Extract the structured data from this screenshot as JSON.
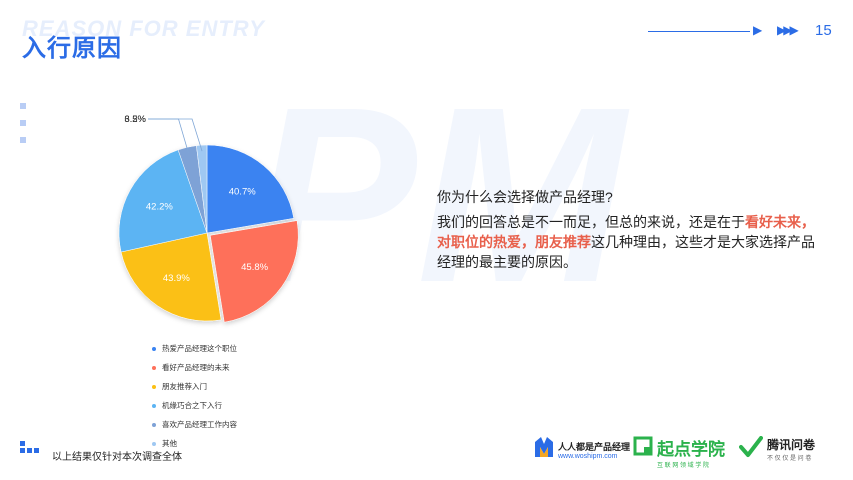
{
  "header": {
    "watermark": "REASON FOR ENTRY",
    "title": "入行原因",
    "page_number": "15",
    "accent_color": "#2b6ce6"
  },
  "chart_data": {
    "type": "pie",
    "title": "",
    "slices": [
      {
        "label": "热爱产品经理这个职位",
        "value": 40.7,
        "display": "40.7%",
        "color": "#3a83f1"
      },
      {
        "label": "看好产品经理的未来",
        "value": 45.8,
        "display": "45.8%",
        "color": "#fe705a"
      },
      {
        "label": "朋友推荐入门",
        "value": 43.9,
        "display": "43.9%",
        "color": "#fbc013"
      },
      {
        "label": "机缘巧合之下入行",
        "value": 42.2,
        "display": "42.2%",
        "color": "#5cb4f3"
      },
      {
        "label": "喜欢产品经理工作内容",
        "value": 6.2,
        "display": "6.2%",
        "color": "#7ea2d6"
      },
      {
        "label": "其他",
        "value": 3.5,
        "display": "3.5%",
        "color": "#9fc8f2"
      }
    ],
    "legend_placement": "bottom"
  },
  "text": {
    "question": "你为什么会选择做产品经理?",
    "answer_part1": "我们的回答总是不一而足，但总的来说，还是在于",
    "answer_highlight": "看好未来，对职位的热爱，朋友推荐",
    "answer_part2": "这几种理由，这些才是大家选择产品经理的最主要的原因。",
    "highlight_color": "#e8604c"
  },
  "footer": {
    "note": "以上结果仅针对本次调查全体",
    "logo1_main": "人人都是产品经理",
    "logo1_sub": "www.woshipm.com",
    "logo2_main": "起点学院",
    "logo2_sub": "互 联 网 领 域 学 院",
    "logo3_main": "腾讯问卷",
    "logo3_sub": "不 仅 仅 是 问 卷"
  }
}
